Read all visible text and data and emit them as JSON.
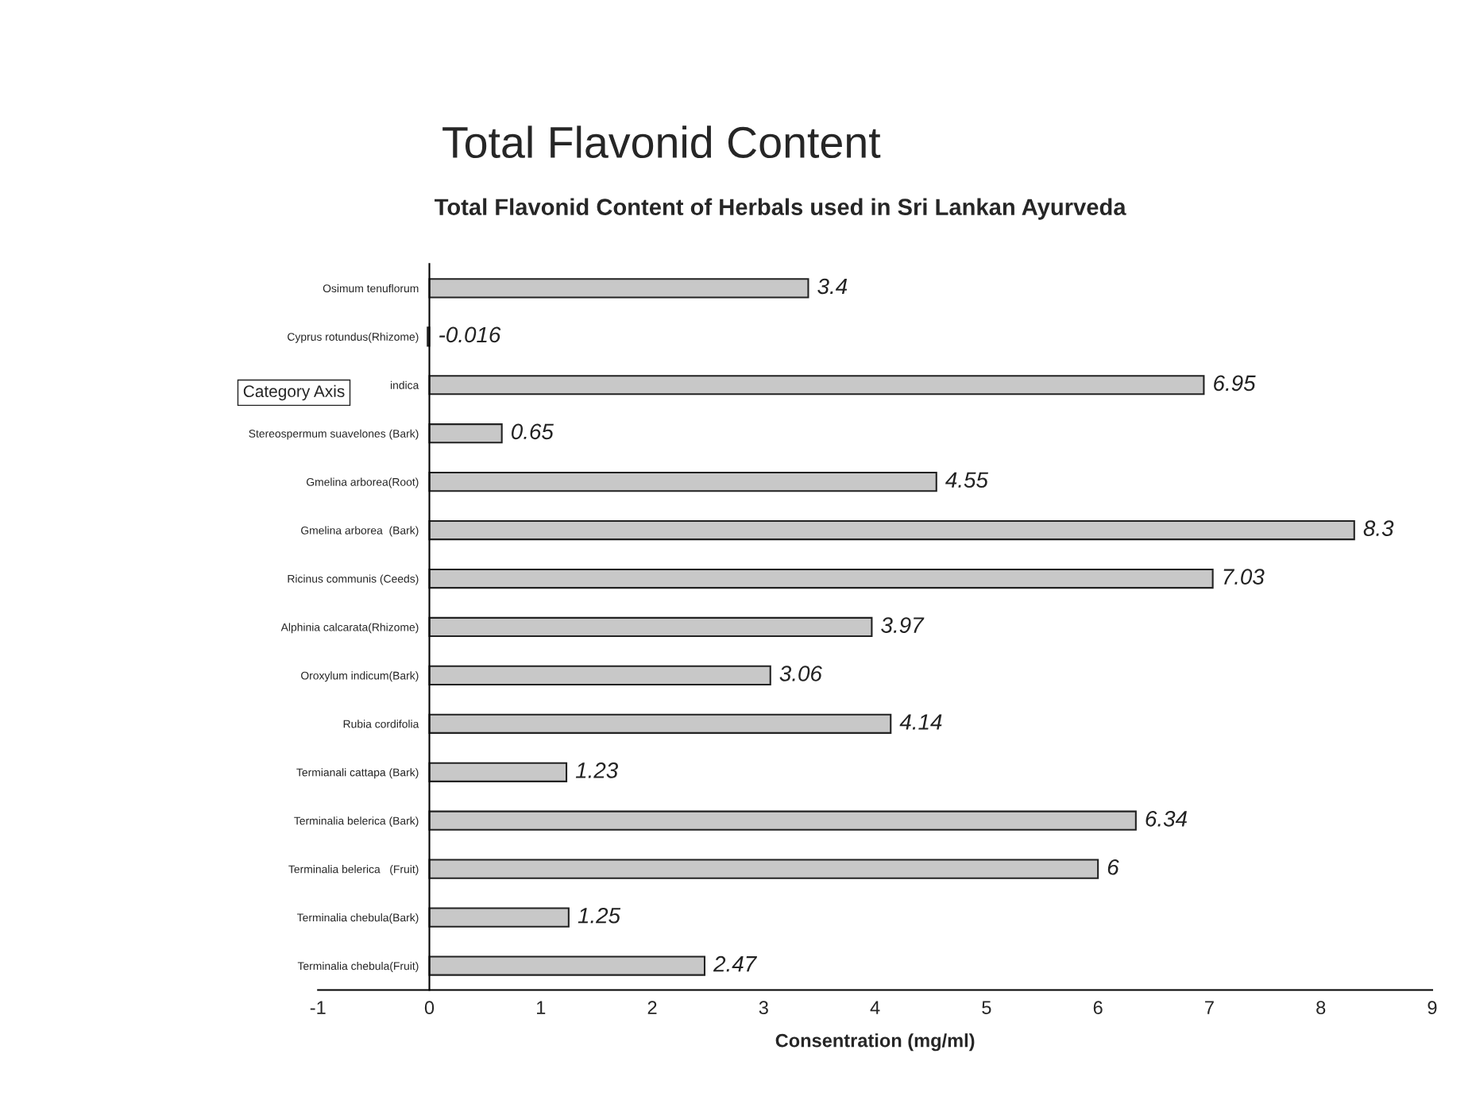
{
  "chart_data": {
    "type": "bar",
    "orientation": "horizontal",
    "title": "Total Flavonid Content",
    "subtitle": "Total Flavonid Content of Herbals used in Sri Lankan Ayurveda",
    "xlabel": "Consentration (mg/ml)",
    "categories": [
      "Osimum tenuflorum",
      "Cyprus rotundus(Rhizome)",
      "indica",
      "Stereospermum suavelones (Bark)",
      "Gmelina arborea(Root)",
      "Gmelina arborea  (Bark)",
      "Ricinus communis (Ceeds)",
      "Alphinia calcarata(Rhizome)",
      "Oroxylum indicum(Bark)",
      "Rubia cordifolia",
      "Termianali cattapa (Bark)",
      "Terminalia belerica (Bark)",
      "Terminalia belerica   (Fruit)",
      "Terminalia chebula(Bark)",
      "Terminalia chebula(Fruit)"
    ],
    "values": [
      3.4,
      -0.016,
      6.95,
      0.65,
      4.55,
      8.3,
      7.03,
      3.97,
      3.06,
      4.14,
      1.23,
      6.34,
      6,
      1.25,
      2.47
    ],
    "color": "#c8c8c8",
    "data_labels": true,
    "xlim": [
      -1,
      9
    ],
    "xticks": [
      -1,
      0,
      1,
      2,
      3,
      4,
      5,
      6,
      7,
      8,
      9
    ],
    "grid": false,
    "legend": false,
    "annotations": [
      "Category Axis"
    ]
  }
}
